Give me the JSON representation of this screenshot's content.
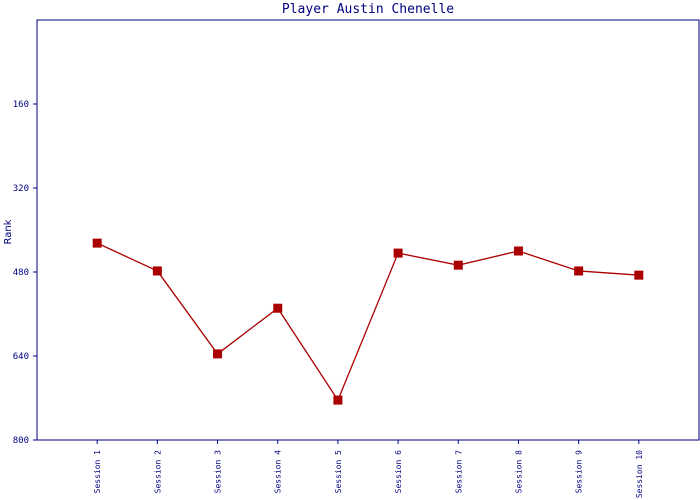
{
  "chart_data": {
    "type": "line",
    "title": "Player Austin Chenelle",
    "y_label": "Rank",
    "categories": [
      "Session 1",
      "Session 2",
      "Session 3",
      "Session 4",
      "Session 5",
      "Session 6",
      "Session 7",
      "Session 8",
      "Session 9",
      "Session 10"
    ],
    "series": [
      {
        "name": "Rank",
        "color": "#aa0000",
        "values": [
          425,
          478,
          636,
          549,
          724,
          444,
          467,
          440,
          478,
          486
        ]
      }
    ],
    "ylim": [
      800,
      0
    ],
    "yticks": [
      160,
      320,
      480,
      640,
      800
    ]
  }
}
